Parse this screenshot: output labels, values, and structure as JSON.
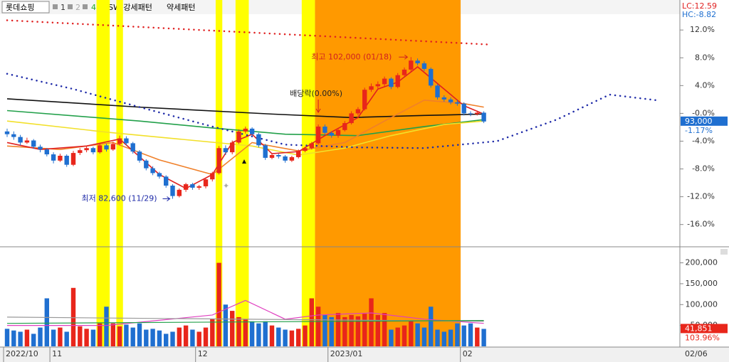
{
  "header": {
    "name": "롯데쇼핑",
    "tabs": [
      "1",
      "2",
      "4"
    ],
    "patterns": [
      "SW 강세패턴",
      "약세패턴"
    ]
  },
  "chart_data": [
    {
      "type": "candlestick",
      "lc": "LC:12.59",
      "hc": "HC:-8.82",
      "ylim": [
        -19,
        15.5
      ],
      "yticks": [
        {
          "value": 12,
          "label": "12.0%"
        },
        {
          "value": 8,
          "label": "8.0%"
        },
        {
          "value": 4,
          "label": "4.0%"
        },
        {
          "value": 0,
          "label": "-0.0%"
        },
        {
          "value": -4,
          "label": "-4.0%"
        },
        {
          "value": -8,
          "label": "-8.0%"
        },
        {
          "value": -12,
          "label": "-12.0%"
        },
        {
          "value": -16,
          "label": "-16.0%"
        }
      ],
      "up_color": "#e8261b",
      "down_color": "#1f6fd0",
      "categories": [
        "2022/10",
        null,
        null,
        null,
        null,
        null,
        null,
        "11",
        null,
        null,
        null,
        null,
        null,
        null,
        null,
        null,
        null,
        null,
        null,
        null,
        null,
        null,
        null,
        null,
        null,
        null,
        null,
        null,
        null,
        "12",
        null,
        null,
        null,
        null,
        null,
        null,
        null,
        null,
        null,
        null,
        null,
        null,
        null,
        null,
        null,
        null,
        null,
        null,
        null,
        "2023/01",
        null,
        null,
        null,
        null,
        null,
        null,
        null,
        null,
        null,
        null,
        null,
        null,
        null,
        null,
        null,
        null,
        null,
        null,
        null,
        "02",
        null,
        null,
        null
      ],
      "last_date": "02/06",
      "candles": [
        [
          -2.6,
          -2.2,
          -3.4,
          -3.0
        ],
        [
          -3.0,
          -2.6,
          -3.8,
          -3.4
        ],
        [
          -3.4,
          -3.1,
          -4.6,
          -4.2
        ],
        [
          -4.2,
          -3.5,
          -4.4,
          -3.9
        ],
        [
          -3.9,
          -3.7,
          -5.1,
          -4.8
        ],
        [
          -4.8,
          -4.5,
          -5.6,
          -5.2
        ],
        [
          -5.2,
          -5.0,
          -6.2,
          -5.9
        ],
        [
          -5.9,
          -5.6,
          -7.2,
          -6.8
        ],
        [
          -6.8,
          -5.8,
          -7.0,
          -6.1
        ],
        [
          -6.1,
          -5.9,
          -7.7,
          -7.4
        ],
        [
          -7.4,
          -5.4,
          -7.6,
          -5.7
        ],
        [
          -5.7,
          -5.0,
          -6.0,
          -5.3
        ],
        [
          -5.3,
          -4.7,
          -5.6,
          -5.0
        ],
        [
          -5.0,
          -4.8,
          -5.9,
          -5.6
        ],
        [
          -5.6,
          -4.3,
          -5.8,
          -4.6
        ],
        [
          -4.6,
          -4.4,
          -5.5,
          -5.2
        ],
        [
          -5.2,
          -4.1,
          -5.4,
          -4.4
        ],
        [
          -4.4,
          -3.2,
          -4.6,
          -3.6
        ],
        [
          -3.6,
          -3.3,
          -4.6,
          -4.3
        ],
        [
          -4.3,
          -4.1,
          -5.8,
          -5.5
        ],
        [
          -5.5,
          -5.3,
          -7.1,
          -6.8
        ],
        [
          -6.8,
          -6.6,
          -8.2,
          -7.9
        ],
        [
          -7.9,
          -7.6,
          -8.9,
          -8.6
        ],
        [
          -8.6,
          -8.4,
          -9.4,
          -9.1
        ],
        [
          -9.1,
          -8.9,
          -10.7,
          -10.4
        ],
        [
          -10.4,
          -10.2,
          -12.3,
          -11.9
        ],
        [
          -11.9,
          -10.8,
          -12.1,
          -11.0
        ],
        [
          -11.0,
          -10.0,
          -11.3,
          -10.2
        ],
        [
          -10.2,
          -10.0,
          -11.0,
          -10.7
        ],
        [
          -10.7,
          -10.3,
          -11.0,
          -10.5
        ],
        [
          -10.5,
          -9.3,
          -10.8,
          -9.5
        ],
        [
          -9.5,
          -8.4,
          -9.8,
          -8.6
        ],
        [
          -8.6,
          -4.7,
          -8.8,
          -5.0
        ],
        [
          -5.0,
          -4.6,
          -6.0,
          -5.6
        ],
        [
          -5.6,
          -3.9,
          -5.9,
          -4.2
        ],
        [
          -4.2,
          -2.3,
          -4.4,
          -2.6
        ],
        [
          -2.6,
          -1.9,
          -2.9,
          -2.2
        ],
        [
          -2.2,
          -2.0,
          -3.3,
          -3.0
        ],
        [
          -3.0,
          -2.8,
          -4.9,
          -4.6
        ],
        [
          -4.6,
          -4.4,
          -6.7,
          -6.4
        ],
        [
          -6.4,
          -5.8,
          -6.6,
          -6.0
        ],
        [
          -6.0,
          -5.8,
          -6.5,
          -6.2
        ],
        [
          -6.2,
          -6.0,
          -7.1,
          -6.8
        ],
        [
          -6.8,
          -6.1,
          -7.0,
          -6.3
        ],
        [
          -6.3,
          -5.2,
          -6.5,
          -5.4
        ],
        [
          -5.4,
          -4.8,
          -5.6,
          -5.0
        ],
        [
          -5.0,
          -4.1,
          -5.2,
          -4.3
        ],
        [
          -4.3,
          -1.6,
          -4.5,
          -1.9
        ],
        [
          -1.9,
          -1.6,
          -3.1,
          -2.8
        ],
        [
          -2.8,
          -2.6,
          -3.5,
          -3.2
        ],
        [
          -3.2,
          -2.1,
          -3.5,
          -2.4
        ],
        [
          -2.4,
          -1.1,
          -2.6,
          -1.4
        ],
        [
          -1.4,
          0.3,
          -1.6,
          0.0
        ],
        [
          0.0,
          0.9,
          -0.3,
          0.6
        ],
        [
          0.6,
          3.7,
          0.4,
          3.4
        ],
        [
          3.4,
          4.3,
          3.1,
          3.9
        ],
        [
          3.9,
          4.6,
          3.6,
          4.2
        ],
        [
          4.2,
          5.3,
          3.9,
          5.0
        ],
        [
          5.0,
          5.2,
          3.5,
          3.8
        ],
        [
          3.8,
          5.8,
          3.6,
          5.5
        ],
        [
          5.5,
          6.6,
          5.2,
          6.3
        ],
        [
          6.3,
          8.1,
          6.0,
          7.6
        ],
        [
          7.6,
          7.9,
          6.9,
          7.2
        ],
        [
          7.2,
          7.5,
          6.1,
          6.4
        ],
        [
          6.4,
          6.6,
          3.7,
          4.0
        ],
        [
          4.0,
          4.2,
          2.0,
          2.3
        ],
        [
          2.3,
          2.6,
          1.7,
          2.0
        ],
        [
          2.0,
          2.3,
          1.3,
          1.6
        ],
        [
          1.6,
          1.9,
          1.1,
          1.4
        ],
        [
          1.4,
          1.6,
          -0.3,
          0.0
        ],
        [
          0.0,
          0.3,
          -0.4,
          -0.1
        ],
        [
          -0.1,
          0.4,
          -0.3,
          0.1
        ],
        [
          0.1,
          0.3,
          -1.4,
          -1.17
        ]
      ],
      "highlights": [
        {
          "color": "#ffff00",
          "range": [
            14,
            15
          ]
        },
        {
          "color": "#ffff00",
          "range": [
            17,
            17
          ]
        },
        {
          "color": "#ffff00",
          "range": [
            32,
            32
          ]
        },
        {
          "color": "#ffff00",
          "range": [
            35,
            36
          ]
        },
        {
          "color": "#ffff00",
          "range": [
            45,
            46
          ]
        },
        {
          "color": "#ff9900",
          "range": [
            47,
            68
          ]
        }
      ],
      "overlays": [
        {
          "color": "#111111",
          "style": "solid",
          "x": [
            0,
            20,
            40,
            52,
            63,
            72
          ],
          "values": [
            2.1,
            0.9,
            -0.1,
            -0.6,
            -0.3,
            -0.1
          ]
        },
        {
          "color": "#22a04a",
          "style": "solid",
          "x": [
            0,
            20,
            31,
            42,
            53,
            63,
            72
          ],
          "values": [
            0.4,
            -1.1,
            -2.1,
            -3.0,
            -3.2,
            -1.9,
            -0.9
          ]
        },
        {
          "color": "#f2e02a",
          "style": "solid",
          "x": [
            0,
            15,
            26,
            37,
            44,
            51,
            58,
            66,
            72
          ],
          "values": [
            -1.1,
            -2.7,
            -3.7,
            -4.7,
            -6.0,
            -5.0,
            -3.2,
            -1.6,
            -1.1
          ]
        },
        {
          "color": "#f0802a",
          "style": "solid",
          "x": [
            0,
            8,
            16,
            23,
            31,
            37,
            44,
            51,
            57,
            63,
            69,
            72
          ],
          "values": [
            -4.7,
            -5.2,
            -4.2,
            -6.7,
            -8.8,
            -4.2,
            -5.4,
            -4.2,
            -1.1,
            1.9,
            1.4,
            0.9
          ]
        },
        {
          "color": "#e02020",
          "style": "solid",
          "x": [
            0,
            5,
            12,
            17,
            23,
            27,
            31,
            34,
            37,
            40,
            44,
            48,
            53,
            56,
            59,
            62,
            66,
            69,
            72
          ],
          "values": [
            -4.2,
            -5.2,
            -4.7,
            -3.7,
            -8.8,
            -10.8,
            -8.8,
            -4.2,
            -3.0,
            -5.8,
            -5.5,
            -3.2,
            -0.6,
            3.5,
            4.5,
            6.7,
            3.5,
            1.1,
            -0.1
          ]
        },
        {
          "color": "#e02020",
          "style": "dotted",
          "x": [
            0,
            73
          ],
          "values": [
            13.4,
            9.9
          ]
        },
        {
          "color": "#1e2aa8",
          "style": "dotted",
          "x": [
            0,
            10,
            20,
            31,
            42,
            53,
            63,
            74,
            83,
            91,
            98
          ],
          "values": [
            5.7,
            3.5,
            0.9,
            -1.9,
            -4.5,
            -4.9,
            -5.0,
            -4.0,
            -0.9,
            2.7,
            1.9
          ]
        }
      ],
      "annotations": {
        "high": "최고 102,000 (01/18)",
        "low": "최저 82,600 (11/29)",
        "dividend": "배당락(0.00%)"
      },
      "price_box": {
        "price": "93,000",
        "change": "-1.17%"
      }
    },
    {
      "type": "volume",
      "ylim": [
        0,
        235000
      ],
      "yticks": [
        {
          "value": 50000,
          "label": "50,000"
        },
        {
          "value": 100000,
          "label": "100,000"
        },
        {
          "value": 150000,
          "label": "150,000"
        },
        {
          "value": 200000,
          "label": "200,000"
        }
      ],
      "values": [
        42000,
        38000,
        35000,
        40000,
        30000,
        45000,
        115000,
        40000,
        45000,
        35000,
        140000,
        48000,
        42000,
        40000,
        55000,
        95000,
        55000,
        48000,
        52000,
        45000,
        55000,
        40000,
        42000,
        38000,
        30000,
        35000,
        45000,
        50000,
        40000,
        35000,
        45000,
        65000,
        200000,
        100000,
        85000,
        70000,
        65000,
        60000,
        55000,
        60000,
        50000,
        45000,
        40000,
        38000,
        42000,
        50000,
        115000,
        95000,
        75000,
        70000,
        80000,
        70000,
        75000,
        72000,
        78000,
        115000,
        75000,
        80000,
        40000,
        45000,
        50000,
        60000,
        55000,
        45000,
        95000,
        40000,
        35000,
        40000,
        55000,
        50000,
        55000,
        45000,
        41851
      ],
      "overlays": [
        {
          "color": "#e040c0",
          "x": [
            0,
            15,
            31,
            36,
            42,
            47,
            55,
            63,
            72
          ],
          "values": [
            50000,
            50000,
            75000,
            110000,
            65000,
            75000,
            80000,
            65000,
            55000
          ]
        },
        {
          "color": "#999999",
          "x": [
            0,
            72
          ],
          "values": [
            70000,
            60000
          ]
        },
        {
          "color": "#22a04a",
          "x": [
            0,
            72
          ],
          "values": [
            55000,
            62000
          ]
        }
      ],
      "volume_box": {
        "volume": "41,851",
        "ratio": "103.96%"
      }
    }
  ]
}
